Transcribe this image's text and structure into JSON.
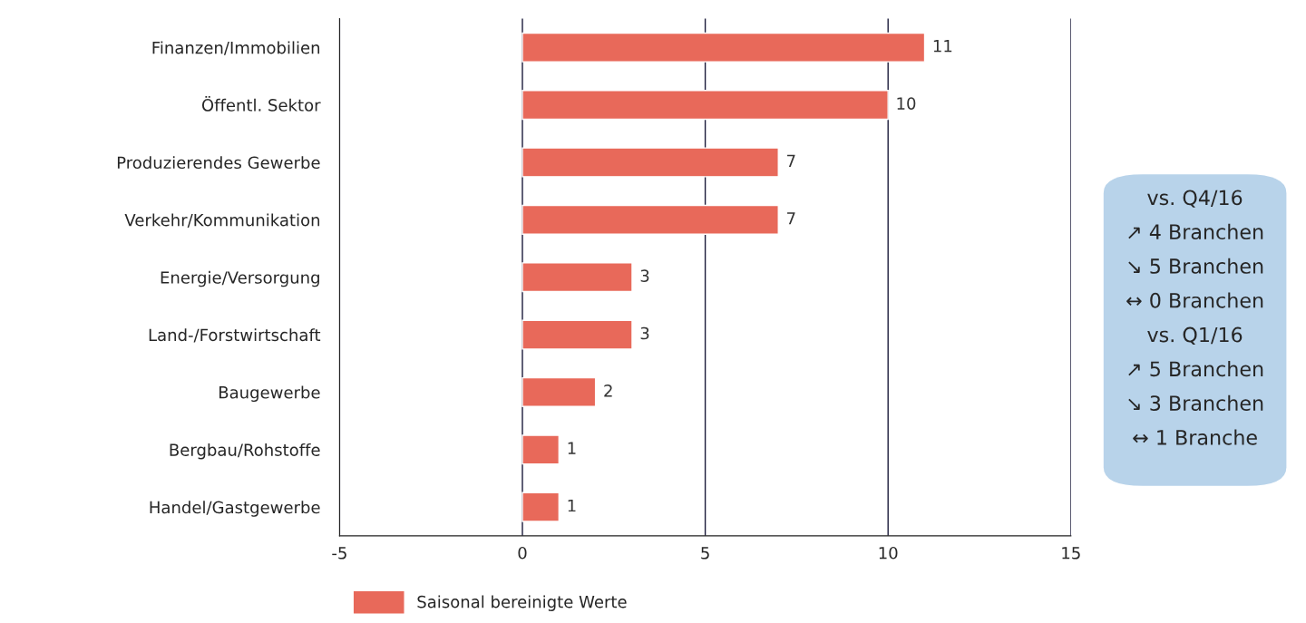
{
  "chart_data": {
    "type": "bar",
    "orientation": "horizontal",
    "categories": [
      "Finanzen/Immobilien",
      "Öffentl. Sektor",
      "Produzierendes Gewerbe",
      "Verkehr/Kommunikation",
      "Energie/Versorgung",
      "Land-/Forstwirtschaft",
      "Baugewerbe",
      "Bergbau/Rohstoffe",
      "Handel/Gastgewerbe"
    ],
    "series": [
      {
        "name": "Saisonal bereinigte Werte",
        "color": "#e8695a",
        "values": [
          11,
          10,
          7,
          7,
          3,
          3,
          2,
          1,
          1
        ]
      }
    ],
    "xlim": [
      -5,
      15
    ],
    "xticks": [
      -5,
      0,
      5,
      10,
      15
    ],
    "grid": "x",
    "data_labels": true,
    "legend": "bottom left",
    "annotations": [
      "vs. Q4/16",
      "↗ 4 Branchen",
      "↘ 5 Branchen",
      "↔ 0 Branchen",
      "vs. Q1/16",
      "↗ 5 Branchen",
      "↘ 3 Branchen",
      "↔ 1 Branche"
    ]
  }
}
